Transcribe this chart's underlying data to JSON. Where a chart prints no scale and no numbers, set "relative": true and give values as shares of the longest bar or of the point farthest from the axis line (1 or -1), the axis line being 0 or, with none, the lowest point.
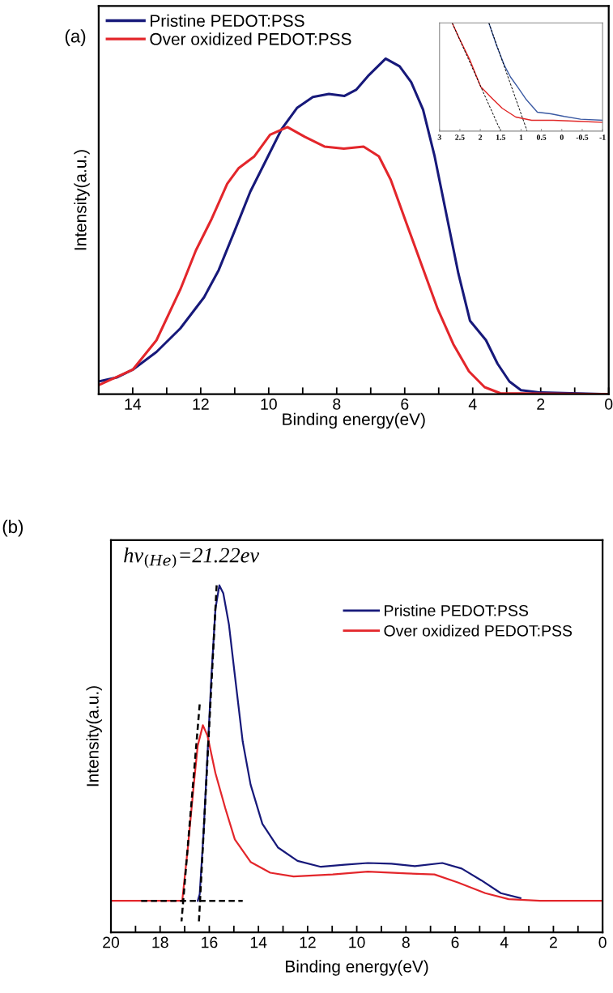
{
  "chart_data": [
    {
      "type": "line",
      "title": "(a)",
      "xlabel": "Binding energy(eV)",
      "ylabel": "Intensity(a.u.)",
      "relative": true,
      "tick_labels": "x",
      "legend": "top left",
      "grid": false,
      "xlim": [
        15,
        0
      ],
      "xticks": [
        {
          "value": 13,
          "label": null
        },
        14,
        {
          "value": 11,
          "label": null
        },
        12,
        {
          "value": 9,
          "label": null
        },
        10,
        {
          "value": 7,
          "label": null
        },
        8,
        {
          "value": 5,
          "label": null
        },
        6,
        {
          "value": 3,
          "label": null
        },
        4,
        {
          "value": 1,
          "label": null
        },
        2,
        0
      ],
      "series": [
        {
          "name": "Pristine PEDOT:PSS",
          "color": "#17197a",
          "x": [
            15.0,
            14.47,
            14.0,
            13.3,
            12.6,
            11.9,
            11.47,
            11.0,
            10.54,
            10.08,
            9.62,
            9.16,
            8.7,
            8.23,
            7.77,
            7.43,
            7.08,
            6.56,
            6.15,
            5.81,
            5.46,
            5.12,
            4.77,
            4.42,
            4.08,
            3.61,
            3.27,
            2.92,
            2.58,
            2.0,
            0
          ],
          "values": [
            0.038,
            0.05,
            0.073,
            0.126,
            0.196,
            0.289,
            0.37,
            0.487,
            0.604,
            0.697,
            0.79,
            0.854,
            0.886,
            0.895,
            0.889,
            0.907,
            0.948,
            1.0,
            0.977,
            0.93,
            0.848,
            0.709,
            0.534,
            0.359,
            0.219,
            0.161,
            0.091,
            0.038,
            0.012,
            0.005,
            0
          ]
        },
        {
          "name": "Over oxidized PEDOT:PSS",
          "color": "#e3262b",
          "x": [
            15.0,
            14.0,
            13.3,
            12.6,
            12.14,
            11.68,
            11.22,
            10.88,
            10.42,
            9.96,
            9.45,
            8.94,
            8.36,
            7.79,
            7.21,
            6.76,
            6.41,
            5.95,
            5.49,
            5.03,
            4.57,
            4.11,
            3.65,
            3.19,
            0
          ],
          "values": [
            0.027,
            0.073,
            0.161,
            0.312,
            0.429,
            0.522,
            0.627,
            0.674,
            0.709,
            0.773,
            0.796,
            0.767,
            0.738,
            0.732,
            0.738,
            0.709,
            0.639,
            0.51,
            0.382,
            0.254,
            0.149,
            0.068,
            0.021,
            0.003,
            0
          ]
        }
      ]
    },
    {
      "type": "line",
      "relative": true,
      "tick_labels": "x",
      "grid": false,
      "xlim": [
        3,
        -1
      ],
      "xticks": [
        3,
        2.5,
        2,
        1.5,
        1,
        0.5,
        0,
        {
          "value": -0.5,
          "label": "-0.5"
        },
        {
          "value": -1,
          "label": "-1"
        }
      ],
      "series": [
        {
          "color": "#3b5aa3",
          "x": [
            1.79,
            1.6,
            1.4,
            1.26,
            1.07,
            0.87,
            0.6,
            0.27,
            -0.06,
            -0.46,
            -1.0
          ],
          "values": [
            1.0,
            0.79,
            0.6,
            0.5,
            0.4,
            0.29,
            0.175,
            0.16,
            0.135,
            0.11,
            0.1
          ]
        },
        {
          "color": "#e02424",
          "x": [
            2.69,
            2.52,
            2.26,
            1.99,
            1.73,
            1.46,
            1.13,
            0.74,
            0.21,
            -0.39,
            -1.0
          ],
          "values": [
            1.0,
            0.86,
            0.66,
            0.41,
            0.31,
            0.21,
            0.13,
            0.1,
            0.1,
            0.09,
            0.08
          ]
        },
        {
          "color": "#000000",
          "line_style": "dashed",
          "x": [
            2.69,
            1.5
          ],
          "values": [
            1.0,
            0
          ]
        },
        {
          "color": "#000000",
          "line_style": "dashed",
          "x": [
            1.79,
            0.85
          ],
          "values": [
            1.0,
            0
          ]
        }
      ]
    },
    {
      "type": "line",
      "title": "(b)",
      "xlabel": "Binding energy(eV)",
      "ylabel": "Intensity(a.u.)",
      "relative": true,
      "tick_labels": "x",
      "legend": "top right",
      "grid": false,
      "annotations": [
        "hν$_{(He)}$=21.22ev"
      ],
      "xlim": [
        20,
        0
      ],
      "xticks": [
        20,
        {
          "value": 19,
          "label": null
        },
        18,
        {
          "value": 17,
          "label": null
        },
        16,
        {
          "value": 15,
          "label": null
        },
        14,
        {
          "value": 13,
          "label": null
        },
        12,
        {
          "value": 11,
          "label": null
        },
        10,
        {
          "value": 9,
          "label": null
        },
        8,
        {
          "value": 7,
          "label": null
        },
        6,
        {
          "value": 5,
          "label": null
        },
        4,
        {
          "value": 3,
          "label": null
        },
        2,
        {
          "value": 1,
          "label": null
        },
        0
      ],
      "series": [
        {
          "name": "Pristine PEDOT:PSS",
          "color": "#17197a",
          "x": [
            16.47,
            16.39,
            16.23,
            16.07,
            15.91,
            15.75,
            15.59,
            15.43,
            15.2,
            14.96,
            14.64,
            14.32,
            13.84,
            13.21,
            12.41,
            11.46,
            10.5,
            9.55,
            8.59,
            7.64,
            6.52,
            5.73,
            4.93,
            4.14,
            3.34
          ],
          "values": [
            0.091,
            0.11,
            0.29,
            0.516,
            0.741,
            0.932,
            1.0,
            0.977,
            0.887,
            0.741,
            0.55,
            0.426,
            0.313,
            0.245,
            0.206,
            0.189,
            0.195,
            0.2,
            0.198,
            0.191,
            0.2,
            0.184,
            0.15,
            0.113,
            0.099
          ]
        },
        {
          "name": "Over oxidized PEDOT:PSS",
          "color": "#e3262b",
          "x": [
            20,
            17.1,
            16.87,
            16.63,
            16.47,
            16.26,
            16.07,
            15.75,
            15.35,
            14.96,
            14.32,
            13.52,
            12.57,
            10.98,
            9.55,
            7.96,
            6.84,
            5.89,
            4.77,
            3.82,
            2.55,
            0
          ],
          "values": [
            0.091,
            0.091,
            0.245,
            0.426,
            0.538,
            0.597,
            0.566,
            0.459,
            0.358,
            0.268,
            0.203,
            0.172,
            0.161,
            0.167,
            0.175,
            0.17,
            0.167,
            0.144,
            0.113,
            0.096,
            0.091,
            0.091
          ]
        },
        {
          "color": "#000000",
          "line_style": "dashed",
          "x": [
            15.7,
            16.42
          ],
          "values": [
            1.0,
            0.032
          ]
        },
        {
          "color": "#000000",
          "line_style": "dashed",
          "x": [
            16.39,
            17.13
          ],
          "values": [
            0.657,
            0.032
          ]
        },
        {
          "color": "#000000",
          "line_style": "dashed",
          "x": [
            18.77,
            14.64
          ],
          "values": [
            0.091,
            0.091
          ]
        }
      ]
    }
  ]
}
